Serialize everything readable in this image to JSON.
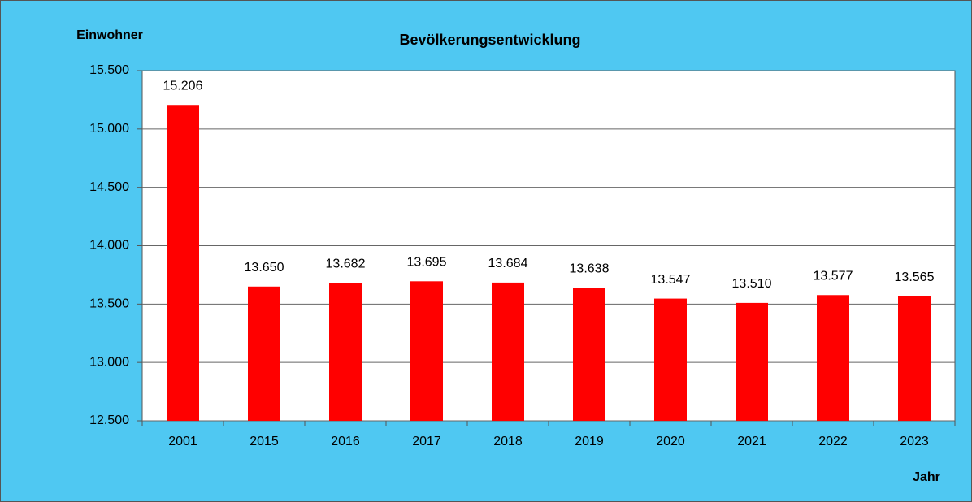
{
  "chart_data": {
    "type": "bar",
    "title": "Bevölkerungsentwicklung",
    "y_label": "Einwohner",
    "x_label": "Jahr",
    "categories": [
      "2001",
      "2015",
      "2016",
      "2017",
      "2018",
      "2019",
      "2020",
      "2021",
      "2022",
      "2023"
    ],
    "values": [
      15206,
      13650,
      13682,
      13695,
      13684,
      13638,
      13547,
      13510,
      13577,
      13565
    ],
    "value_labels": [
      "15.206",
      "13.650",
      "13.682",
      "13.695",
      "13.684",
      "13.638",
      "13.547",
      "13.510",
      "13.577",
      "13.565"
    ],
    "color": "#ff0000",
    "ylim": [
      12500,
      15500
    ],
    "yticks": [
      {
        "value": 12500,
        "label": "12.500"
      },
      {
        "value": 13000,
        "label": "13.000"
      },
      {
        "value": 13500,
        "label": "13.500"
      },
      {
        "value": 14000,
        "label": "14.000"
      },
      {
        "value": 14500,
        "label": "14.500"
      },
      {
        "value": 15000,
        "label": "15.000"
      },
      {
        "value": 15500,
        "label": "15.500"
      }
    ],
    "grid": true
  }
}
